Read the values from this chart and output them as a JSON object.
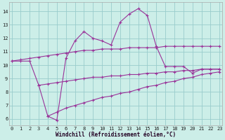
{
  "xlabel": "Windchill (Refroidissement éolien,°C)",
  "bg_color": "#cceee8",
  "line_color": "#993399",
  "grid_color": "#99cccc",
  "xticks": [
    0,
    1,
    2,
    3,
    4,
    5,
    6,
    7,
    8,
    9,
    10,
    11,
    12,
    13,
    14,
    15,
    16,
    17,
    18,
    19,
    20,
    21,
    22,
    23
  ],
  "yticks": [
    6,
    7,
    8,
    9,
    10,
    11,
    12,
    13,
    14
  ],
  "ylim": [
    5.5,
    14.7
  ],
  "xlim": [
    -0.3,
    23.3
  ],
  "curve1_x": [
    0,
    1,
    2,
    3,
    4,
    5,
    6,
    7,
    8,
    9,
    10,
    11,
    12,
    13,
    14,
    15,
    16,
    17,
    18,
    19,
    20,
    21,
    22,
    23
  ],
  "curve1_y": [
    10.3,
    10.3,
    10.3,
    8.5,
    6.2,
    5.9,
    10.5,
    11.8,
    12.5,
    12.0,
    11.8,
    11.5,
    13.2,
    13.8,
    14.2,
    13.7,
    11.4,
    9.9,
    9.9,
    9.9,
    9.4,
    9.7,
    9.7,
    9.7
  ],
  "curve2_x": [
    0,
    1,
    2,
    3,
    4,
    5,
    6,
    7,
    8,
    9,
    10,
    11,
    12,
    13,
    14,
    15,
    16,
    17,
    18,
    19,
    20,
    21,
    22,
    23
  ],
  "curve2_y": [
    10.3,
    10.4,
    10.5,
    10.6,
    10.7,
    10.8,
    10.9,
    11.0,
    11.1,
    11.1,
    11.2,
    11.2,
    11.2,
    11.3,
    11.3,
    11.3,
    11.3,
    11.4,
    11.4,
    11.4,
    11.4,
    11.4,
    11.4,
    11.4
  ],
  "curve3_x": [
    3,
    4,
    5,
    6,
    7,
    8,
    9,
    10,
    11,
    12,
    13,
    14,
    15,
    16,
    17,
    18,
    19,
    20,
    21,
    22,
    23
  ],
  "curve3_y": [
    8.5,
    8.6,
    8.7,
    8.8,
    8.9,
    9.0,
    9.1,
    9.1,
    9.2,
    9.2,
    9.3,
    9.3,
    9.4,
    9.4,
    9.5,
    9.5,
    9.6,
    9.6,
    9.7,
    9.7,
    9.7
  ],
  "curve4_x": [
    4,
    5,
    6,
    7,
    8,
    9,
    10,
    11,
    12,
    13,
    14,
    15,
    16,
    17,
    18,
    19,
    20,
    21,
    22,
    23
  ],
  "curve4_y": [
    6.2,
    6.5,
    6.8,
    7.0,
    7.2,
    7.4,
    7.6,
    7.7,
    7.9,
    8.0,
    8.2,
    8.4,
    8.5,
    8.7,
    8.8,
    9.0,
    9.1,
    9.3,
    9.4,
    9.5
  ]
}
